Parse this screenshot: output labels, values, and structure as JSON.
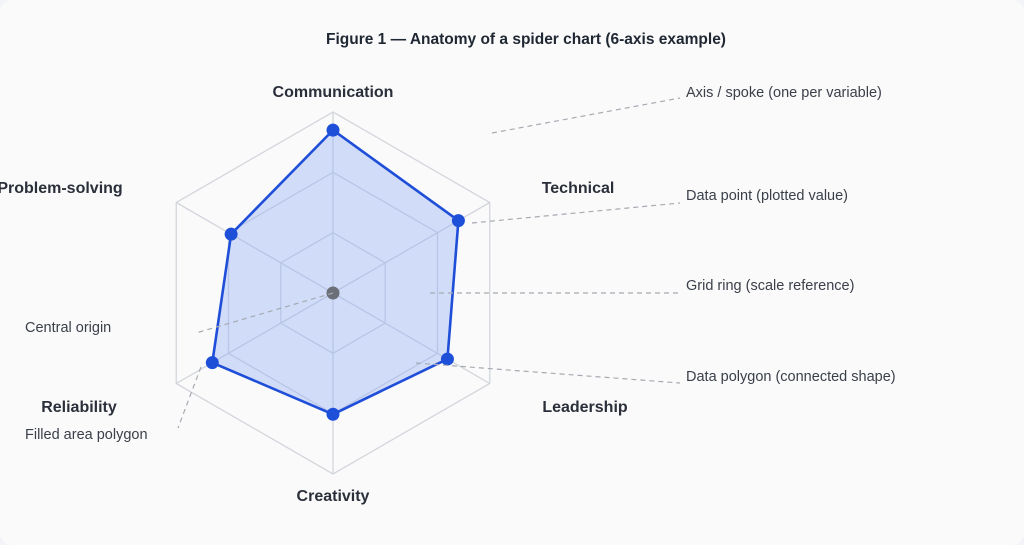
{
  "figure": {
    "title": "Figure 1 — Anatomy of a spider chart (6-axis example)"
  },
  "colors": {
    "polygon_stroke": "#1f4ed8",
    "polygon_fill": "#8eaaf6",
    "grid": "#d3d6dc",
    "origin": "#6b6f77",
    "leader": "#a6aab2"
  },
  "axes": [
    {
      "label": "Communication",
      "value": 0.9
    },
    {
      "label": "Technical",
      "value": 0.8
    },
    {
      "label": "Leadership",
      "value": 0.73
    },
    {
      "label": "Creativity",
      "value": 0.67
    },
    {
      "label": "Reliability",
      "value": 0.77
    },
    {
      "label": "Problem-solving",
      "value": 0.65
    }
  ],
  "scale": {
    "max": 1,
    "rings": 3
  },
  "callouts": {
    "axis_spoke": "Axis / spoke (one per variable)",
    "data_point": "Data point (plotted value)",
    "grid_ring": "Grid ring (scale reference)",
    "data_polygon": "Data polygon (connected shape)",
    "central_origin": "Central origin",
    "filled_area": "Filled area polygon"
  }
}
